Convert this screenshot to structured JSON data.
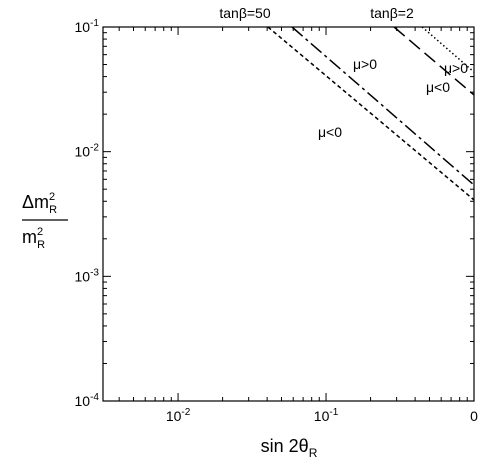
{
  "chart_data": {
    "type": "line",
    "xscale": "log",
    "yscale": "log",
    "xlim": [
      0.00311,
      1
    ],
    "ylim": [
      0.0001,
      0.1
    ],
    "xticks": [
      {
        "value": 0.01,
        "label": "10",
        "sup": "-2"
      },
      {
        "value": 0.1,
        "label": "10",
        "sup": "-1"
      },
      {
        "value": 1,
        "label": "0"
      }
    ],
    "yticks": [
      {
        "value": 0.0001,
        "label": "10",
        "sup": "-4"
      },
      {
        "value": 0.001,
        "label": "10",
        "sup": "-3"
      },
      {
        "value": 0.01,
        "label": "10",
        "sup": "-2"
      },
      {
        "value": 0.1,
        "label": "10",
        "sup": "-1"
      }
    ],
    "x_label": {
      "text": "sin 2θ",
      "sub": "R"
    },
    "y_label": {
      "numerator": {
        "text": "Δm",
        "sup": "2",
        "sub": "R"
      },
      "denominator": {
        "text": "m",
        "sup": "2",
        "sub": "R"
      }
    },
    "series": [
      {
        "color": "#000000",
        "dash": "4,3",
        "x": [
          0.0405,
          1
        ],
        "values": [
          0.1,
          0.0041
        ]
      },
      {
        "color": "#000000",
        "dash": "14,4,3,4",
        "x": [
          0.0589,
          1
        ],
        "values": [
          0.1,
          0.0054
        ]
      },
      {
        "color": "#000000",
        "dash": "14,6",
        "x": [
          0.288,
          1
        ],
        "values": [
          0.1,
          0.0285
        ]
      },
      {
        "color": "#000000",
        "dash": "1.5,2.5",
        "x": [
          0.446,
          1
        ],
        "values": [
          0.1,
          0.0435
        ]
      }
    ],
    "annotations": [
      "tanβ=50",
      "tanβ=2",
      "μ>0",
      "μ<0",
      "μ>0",
      "μ<0"
    ]
  }
}
